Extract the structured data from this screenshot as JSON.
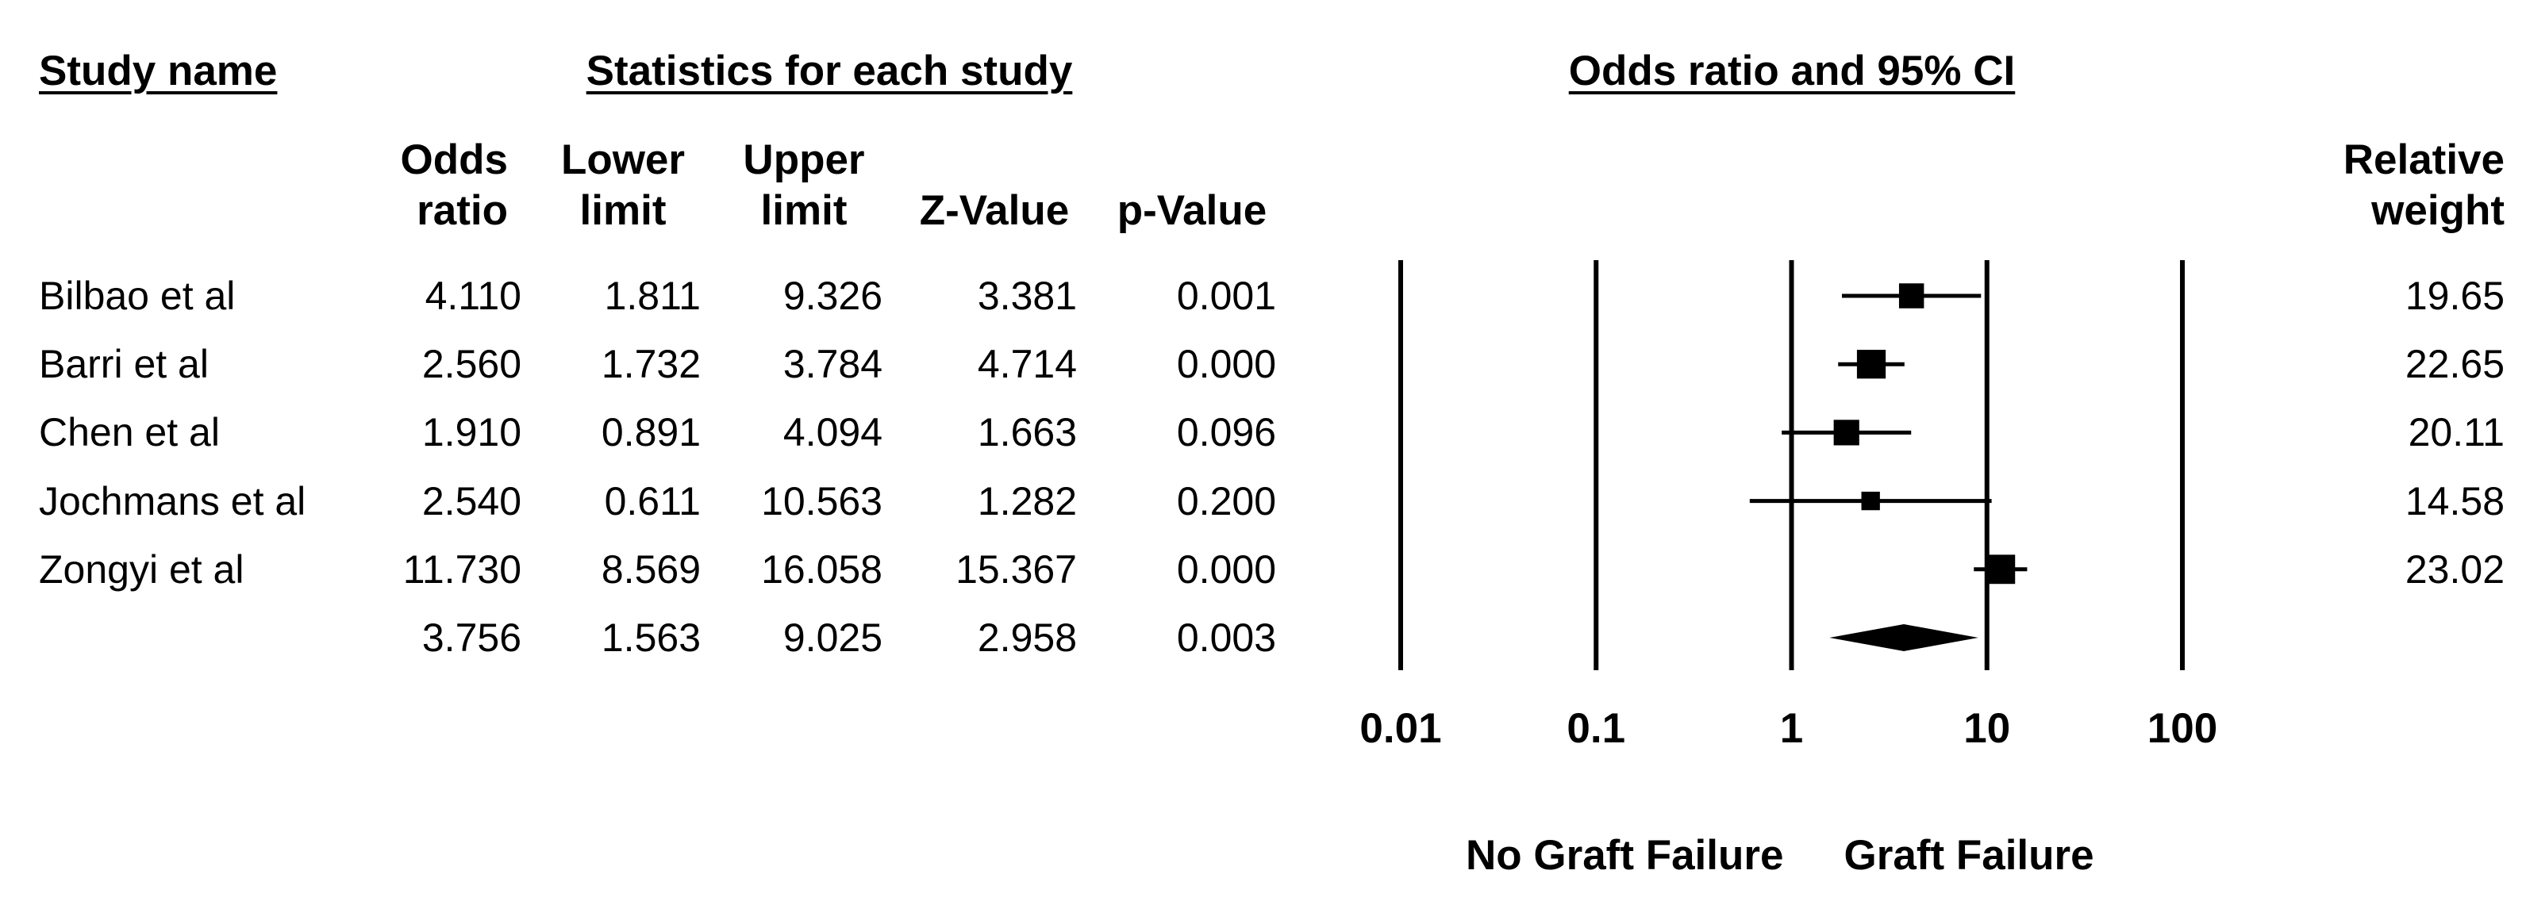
{
  "chart_data": {
    "type": "forest",
    "title_study": "Study name",
    "title_stats": "Statistics for each study",
    "title_plot": "Odds ratio and 95% CI",
    "categories": [
      "Bilbao et al",
      "Barri et al",
      "Chen et al",
      "Jochmans et al",
      "Zongyi et al",
      null
    ],
    "columns": [
      {
        "name": "Odds ratio",
        "values": [
          4.11,
          2.56,
          1.91,
          2.54,
          11.73,
          3.756
        ],
        "value_labels": [
          "4.110",
          "2.560",
          "1.910",
          "2.540",
          "11.730",
          "3.756"
        ]
      },
      {
        "name": "Lower limit",
        "values": [
          1.811,
          1.732,
          0.891,
          0.611,
          8.569,
          1.563
        ]
      },
      {
        "name": "Upper limit",
        "values": [
          9.326,
          3.784,
          4.094,
          10.563,
          16.058,
          9.025
        ]
      },
      {
        "name": "Z-Value",
        "values": [
          3.381,
          4.714,
          1.663,
          1.282,
          15.367,
          2.958
        ]
      },
      {
        "name": "p-Value",
        "values": [
          0.001,
          0,
          0.096,
          0.2,
          0,
          0.003
        ],
        "value_labels": [
          "0.001",
          "0.000",
          "0.096",
          "0.200",
          "0.000",
          "0.003"
        ]
      }
    ],
    "weight": {
      "name": "Relative weight",
      "values": [
        19.65,
        22.65,
        20.11,
        14.58,
        23.02,
        null
      ]
    },
    "xlim": [
      0.01,
      100
    ],
    "xticks": [
      0.01,
      0.1,
      1,
      10,
      100
    ],
    "log": true,
    "grid": true,
    "xlabel_left": "No Graft Failure",
    "xlabel_right": "Graft Failure",
    "color": "#000000"
  }
}
